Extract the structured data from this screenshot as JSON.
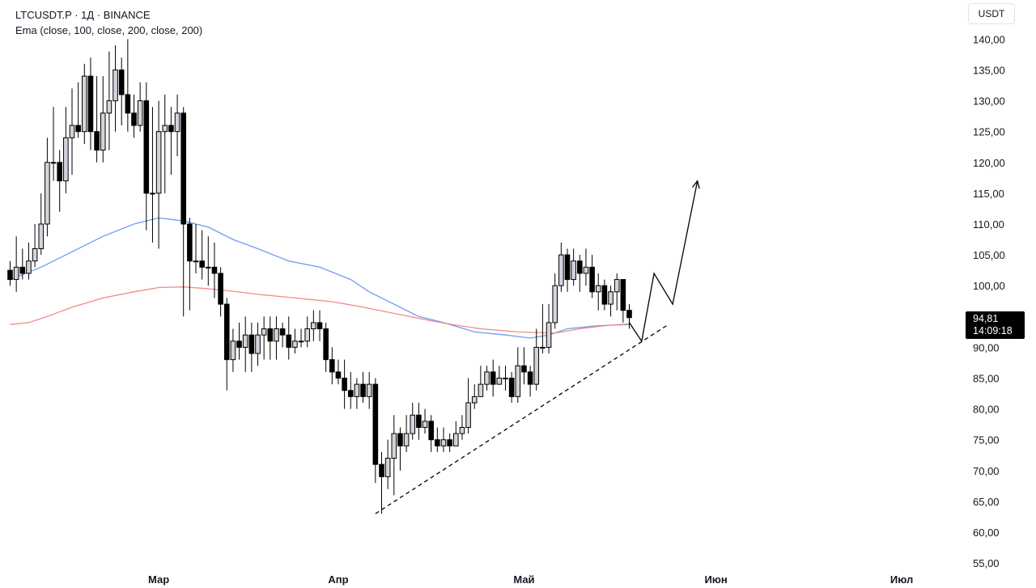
{
  "legend": {
    "symbol_line": "LTCUSDT.P · 1Д · BINANCE",
    "indicator_line": "Ema (close, 100, close, 200, close, 200)"
  },
  "currency_label": "USDT",
  "price_tag": {
    "price": "94,81",
    "countdown": "14:09:18"
  },
  "colors": {
    "ema100": "#6f9cf2",
    "ema200": "#f08a8a",
    "candle_up": "#d1d4dc",
    "candle_down": "#000000",
    "outline": "#000000"
  },
  "chart_data": {
    "type": "candlestick",
    "symbol": "LTCUSDT.P",
    "timeframe": "1Д",
    "exchange": "BINANCE",
    "y_ticks": [
      "55,00",
      "60,00",
      "65,00",
      "70,00",
      "75,00",
      "80,00",
      "85,00",
      "90,00",
      "100,00",
      "105,00",
      "110,00",
      "115,00",
      "120,00",
      "125,00",
      "130,00",
      "135,00",
      "140,00"
    ],
    "y_tick_values": [
      55,
      60,
      65,
      70,
      75,
      80,
      85,
      90,
      100,
      105,
      110,
      115,
      120,
      125,
      130,
      135,
      140
    ],
    "ylim": [
      53,
      142
    ],
    "x_ticks": [
      {
        "label": "Мар",
        "day": 24
      },
      {
        "label": "Апр",
        "day": 53
      },
      {
        "label": "Май",
        "day": 83
      },
      {
        "label": "Июн",
        "day": 114
      },
      {
        "label": "Июл",
        "day": 144
      }
    ],
    "current_price": 94.81,
    "candles": [
      [
        0,
        102.5,
        101,
        104,
        100
      ],
      [
        1,
        101,
        103,
        108,
        99
      ],
      [
        2,
        103,
        102,
        106,
        101
      ],
      [
        3,
        102,
        104,
        107,
        101
      ],
      [
        4,
        104,
        106,
        110,
        103
      ],
      [
        5,
        106,
        110,
        115,
        105
      ],
      [
        6,
        110,
        120,
        124,
        108
      ],
      [
        7,
        120,
        120,
        129,
        117
      ],
      [
        8,
        120,
        117,
        122,
        112
      ],
      [
        9,
        117,
        124,
        129,
        115
      ],
      [
        10,
        124,
        126,
        132,
        118
      ],
      [
        11,
        126,
        125,
        133,
        124
      ],
      [
        12,
        125,
        134,
        136,
        123
      ],
      [
        13,
        134,
        125,
        137,
        122
      ],
      [
        14,
        125,
        122,
        134,
        120
      ],
      [
        15,
        122,
        128,
        134,
        120
      ],
      [
        16,
        128,
        130,
        138,
        122
      ],
      [
        17,
        130,
        135,
        139,
        125
      ],
      [
        18,
        135,
        131,
        137,
        126
      ],
      [
        19,
        131,
        128,
        140,
        125
      ],
      [
        20,
        128,
        126,
        131,
        124
      ],
      [
        21,
        126,
        130,
        133,
        125
      ],
      [
        22,
        130,
        115,
        133,
        109
      ],
      [
        23,
        115,
        115,
        129,
        107
      ],
      [
        24,
        115,
        125,
        130,
        106
      ],
      [
        25,
        125,
        126,
        131,
        115
      ],
      [
        26,
        126,
        125,
        129,
        118
      ],
      [
        27,
        125,
        128,
        131,
        121
      ],
      [
        28,
        128,
        110,
        129,
        95
      ],
      [
        29,
        110,
        104,
        111,
        96
      ],
      [
        30,
        104,
        104,
        110,
        102
      ],
      [
        31,
        104,
        103,
        109,
        101
      ],
      [
        32,
        103,
        103,
        108,
        100
      ],
      [
        33,
        103,
        102,
        107,
        98
      ],
      [
        34,
        102,
        97,
        103,
        95
      ],
      [
        35,
        97,
        88,
        98,
        83
      ],
      [
        36,
        88,
        91,
        93,
        86
      ],
      [
        37,
        91,
        90,
        94,
        88
      ],
      [
        38,
        90,
        92,
        95,
        86
      ],
      [
        39,
        92,
        89,
        94,
        86
      ],
      [
        40,
        89,
        92,
        94,
        87
      ],
      [
        41,
        92,
        93,
        95,
        88
      ],
      [
        42,
        93,
        91,
        95,
        88
      ],
      [
        43,
        91,
        93,
        95,
        88
      ],
      [
        44,
        93,
        92,
        94,
        90
      ],
      [
        45,
        92,
        90,
        95,
        88
      ],
      [
        46,
        90,
        91,
        93,
        89
      ],
      [
        47,
        91,
        91,
        93,
        90
      ],
      [
        48,
        91,
        93,
        95,
        90
      ],
      [
        49,
        93,
        94,
        96,
        91
      ],
      [
        50,
        94,
        93,
        96,
        91
      ],
      [
        51,
        93,
        88,
        94,
        86
      ],
      [
        52,
        88,
        86,
        90,
        84
      ],
      [
        53,
        86,
        85,
        88,
        84
      ],
      [
        54,
        85,
        83,
        88,
        80
      ],
      [
        55,
        83,
        82,
        86,
        80
      ],
      [
        56,
        82,
        84,
        85,
        80
      ],
      [
        57,
        84,
        82,
        86,
        81
      ],
      [
        58,
        82,
        84,
        86,
        80
      ],
      [
        59,
        84,
        71,
        85,
        68
      ],
      [
        60,
        71,
        69,
        73,
        63
      ],
      [
        61,
        69,
        72,
        75,
        67
      ],
      [
        62,
        72,
        76,
        79,
        66
      ],
      [
        63,
        76,
        74,
        77,
        70
      ],
      [
        64,
        74,
        76,
        79,
        73
      ],
      [
        65,
        76,
        79,
        81,
        75
      ],
      [
        66,
        79,
        77,
        81,
        75
      ],
      [
        67,
        77,
        78,
        80,
        76
      ],
      [
        68,
        78,
        75,
        79,
        73
      ],
      [
        69,
        75,
        74,
        77,
        73
      ],
      [
        70,
        74,
        75,
        77,
        73
      ],
      [
        71,
        75,
        74,
        76,
        73
      ],
      [
        72,
        74,
        76,
        78,
        74
      ],
      [
        73,
        76,
        77,
        79,
        75
      ],
      [
        74,
        77,
        81,
        85,
        76
      ],
      [
        75,
        81,
        82,
        84,
        80
      ],
      [
        76,
        82,
        84,
        87,
        82
      ],
      [
        77,
        84,
        86,
        87,
        83
      ],
      [
        78,
        86,
        84,
        88,
        82
      ],
      [
        79,
        84,
        85,
        87,
        84
      ],
      [
        80,
        85,
        85,
        87,
        83
      ],
      [
        81,
        85,
        82,
        86,
        81
      ],
      [
        82,
        82,
        87,
        90,
        81
      ],
      [
        83,
        87,
        86,
        90,
        84
      ],
      [
        84,
        86,
        84,
        87,
        82
      ],
      [
        85,
        84,
        90,
        93,
        83
      ],
      [
        86,
        90,
        90,
        97,
        89
      ],
      [
        87,
        90,
        94,
        97,
        89
      ],
      [
        88,
        94,
        100,
        102,
        93
      ],
      [
        89,
        100,
        105,
        107,
        99
      ],
      [
        90,
        105,
        101,
        106,
        99
      ],
      [
        91,
        101,
        104,
        106,
        100
      ],
      [
        92,
        104,
        102,
        105,
        99
      ],
      [
        93,
        102,
        103,
        106,
        100
      ],
      [
        94,
        103,
        99,
        105,
        98
      ],
      [
        95,
        99,
        100,
        102,
        96
      ],
      [
        96,
        100,
        97,
        101,
        96
      ],
      [
        97,
        97,
        99,
        100,
        95
      ],
      [
        98,
        99,
        101,
        102,
        96
      ],
      [
        99,
        101,
        96,
        101,
        94
      ],
      [
        100,
        96,
        94.81,
        97,
        93
      ]
    ],
    "ema_series": [
      {
        "name": "EMA 100",
        "color": "#6f9cf2",
        "points": [
          [
            0,
            101
          ],
          [
            5,
            103
          ],
          [
            10,
            105.5
          ],
          [
            15,
            108
          ],
          [
            20,
            110
          ],
          [
            24,
            111
          ],
          [
            28,
            110.5
          ],
          [
            32,
            109.5
          ],
          [
            36,
            107.5
          ],
          [
            40,
            106
          ],
          [
            45,
            104
          ],
          [
            50,
            103
          ],
          [
            55,
            101
          ],
          [
            58,
            99
          ],
          [
            62,
            97
          ],
          [
            66,
            95
          ],
          [
            70,
            94
          ],
          [
            75,
            92.5
          ],
          [
            80,
            92
          ],
          [
            84,
            91.5
          ],
          [
            87,
            92
          ],
          [
            90,
            93
          ],
          [
            95,
            93.5
          ],
          [
            100,
            93.7
          ]
        ]
      },
      {
        "name": "EMA 200",
        "color": "#f08a8a",
        "points": [
          [
            0,
            93.7
          ],
          [
            3,
            94
          ],
          [
            6,
            95
          ],
          [
            10,
            96.5
          ],
          [
            15,
            98
          ],
          [
            20,
            99
          ],
          [
            24,
            99.7
          ],
          [
            28,
            99.8
          ],
          [
            32,
            99.5
          ],
          [
            36,
            99.1
          ],
          [
            40,
            98.6
          ],
          [
            46,
            98
          ],
          [
            52,
            97.4
          ],
          [
            56,
            96.7
          ],
          [
            60,
            95.9
          ],
          [
            64,
            95.1
          ],
          [
            68,
            94.3
          ],
          [
            72,
            93.6
          ],
          [
            76,
            93
          ],
          [
            82,
            92.5
          ],
          [
            88,
            92.3
          ],
          [
            92,
            93
          ],
          [
            96,
            93.5
          ],
          [
            100,
            93.8
          ]
        ]
      }
    ],
    "drawings": [
      {
        "kind": "dashed_trendline",
        "from": [
          59,
          63
        ],
        "to": [
          106,
          93.5
        ]
      },
      {
        "kind": "projection_path",
        "points": [
          [
            100,
            94
          ],
          [
            102,
            91
          ],
          [
            104,
            102
          ],
          [
            107,
            97
          ],
          [
            111,
            117
          ]
        ],
        "arrow": true
      }
    ]
  }
}
